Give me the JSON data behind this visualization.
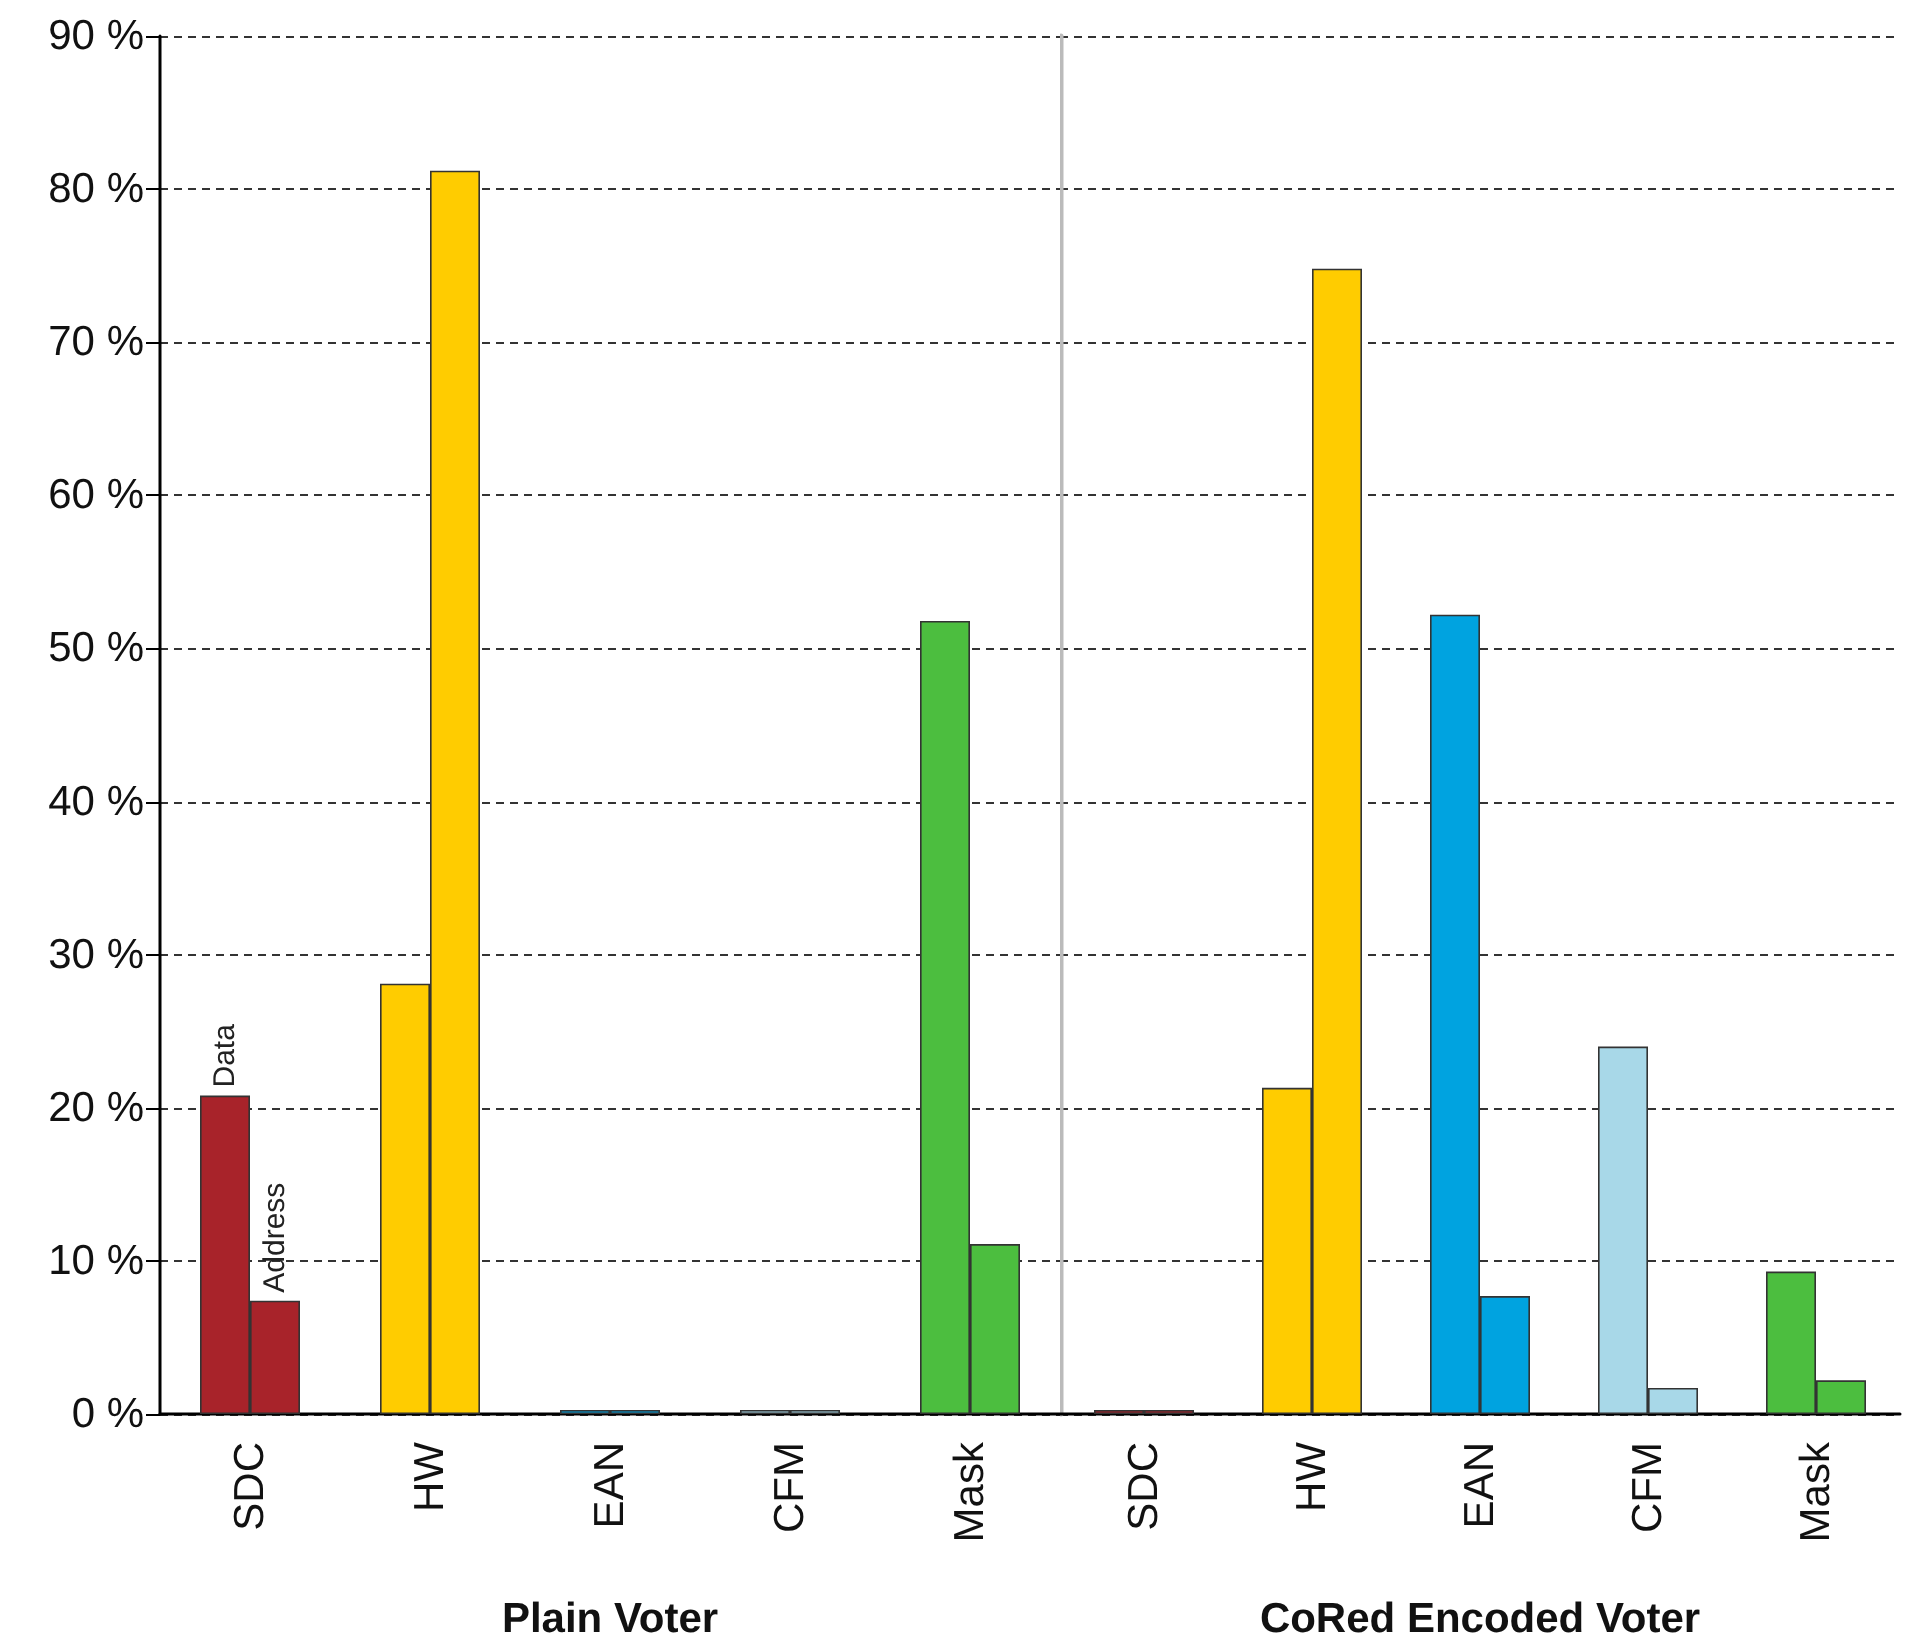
{
  "chart_data": [
    {
      "type": "bar",
      "xlabel": "Plain Voter",
      "categories": [
        "SDC",
        "HW",
        "EAN",
        "CFM",
        "Mask"
      ],
      "ylim": [
        0,
        90
      ],
      "yticks": [
        {
          "value": 0,
          "label": "0 %"
        },
        {
          "value": 10,
          "label": "10 %"
        },
        {
          "value": 20,
          "label": "20 %"
        },
        {
          "value": 30,
          "label": "30 %"
        },
        {
          "value": 40,
          "label": "40 %"
        },
        {
          "value": 50,
          "label": "50 %"
        },
        {
          "value": 60,
          "label": "60 %"
        },
        {
          "value": 70,
          "label": "70 %"
        },
        {
          "value": 80,
          "label": "80 %"
        },
        {
          "value": 90,
          "label": "90 %"
        }
      ],
      "grid": "y",
      "legend": false,
      "series": [
        {
          "name": "Data",
          "colors": [
            "#a8232a",
            "#ffcc00",
            "#00a3e0",
            "#a8d8e8",
            "#4cbe3f"
          ],
          "values": [
            20.8,
            28.1,
            0,
            0,
            51.8
          ]
        },
        {
          "name": "Address",
          "colors": [
            "#a8232a",
            "#ffcc00",
            "#00a3e0",
            "#a8d8e8",
            "#4cbe3f"
          ],
          "values": [
            7.4,
            81.2,
            0,
            0,
            11.1
          ]
        }
      ]
    },
    {
      "type": "bar",
      "xlabel": "CoRed Encoded Voter",
      "categories": [
        "SDC",
        "HW",
        "EAN",
        "CFM",
        "Mask"
      ],
      "ylim": [
        0,
        90
      ],
      "yticks": [
        0,
        10,
        20,
        30,
        40,
        50,
        60,
        70,
        80,
        90
      ],
      "grid": "y",
      "legend": false,
      "tick_labels": "x",
      "series": [
        {
          "colors": [
            "#a8232a",
            "#ffcc00",
            "#00a3e0",
            "#a8d8e8",
            "#4cbe3f"
          ],
          "values": [
            0,
            21.3,
            52.2,
            24.0,
            9.3
          ]
        },
        {
          "colors": [
            "#a8232a",
            "#ffcc00",
            "#00a3e0",
            "#a8d8e8",
            "#4cbe3f"
          ],
          "values": [
            0,
            74.8,
            7.7,
            1.7,
            2.2
          ]
        }
      ]
    }
  ]
}
